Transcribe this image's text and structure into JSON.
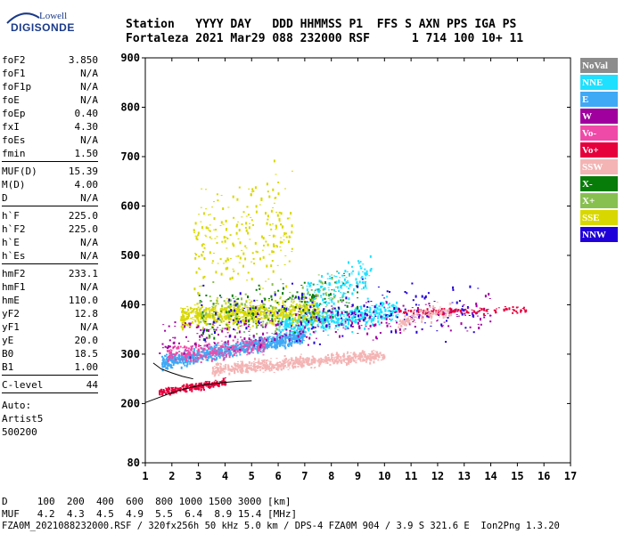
{
  "logo": {
    "line1": "Lowell",
    "line2": "DIGISONDE"
  },
  "header": {
    "line1": "Station   YYYY DAY   DDD HHMMSS P1  FFS S AXN PPS IGA PS",
    "line2": "Fortaleza 2021 Mar29 088 232000 RSF      1 714 100 10+ 11"
  },
  "params": {
    "group1": [
      {
        "name": "foF2",
        "value": "3.850"
      },
      {
        "name": "foF1",
        "value": "N/A"
      },
      {
        "name": "foF1p",
        "value": "N/A"
      },
      {
        "name": "foE",
        "value": "N/A"
      },
      {
        "name": "foEp",
        "value": "0.40"
      },
      {
        "name": "fxI",
        "value": "4.30"
      },
      {
        "name": "foEs",
        "value": "N/A"
      },
      {
        "name": "fmin",
        "value": "1.50"
      }
    ],
    "group2": [
      {
        "name": "MUF(D)",
        "value": "15.39"
      },
      {
        "name": "M(D)",
        "value": "4.00"
      },
      {
        "name": "D",
        "value": "N/A"
      }
    ],
    "group3": [
      {
        "name": "h`F",
        "value": "225.0"
      },
      {
        "name": "h`F2",
        "value": "225.0"
      },
      {
        "name": "h`E",
        "value": "N/A"
      },
      {
        "name": "h`Es",
        "value": "N/A"
      }
    ],
    "group4": [
      {
        "name": "hmF2",
        "value": "233.1"
      },
      {
        "name": "hmF1",
        "value": "N/A"
      },
      {
        "name": "hmE",
        "value": "110.0"
      },
      {
        "name": "yF2",
        "value": "12.8"
      },
      {
        "name": "yF1",
        "value": "N/A"
      },
      {
        "name": "yE",
        "value": "20.0"
      },
      {
        "name": "B0",
        "value": "18.5"
      },
      {
        "name": "B1",
        "value": "1.00"
      }
    ],
    "group5": [
      {
        "name": "C-level",
        "value": "44"
      }
    ],
    "auto": [
      "Auto:",
      "Artist5",
      "500200"
    ]
  },
  "footer": {
    "d_line": "D     100  200  400  600  800 1000 1500 3000 [km]",
    "muf_line": "MUF   4.2  4.3  4.5  4.9  5.5  6.4  8.9 15.4 [MHz]",
    "info_line": "FZA0M_2021088232000.RSF / 320fx256h 50 kHz 5.0 km / DPS-4 FZA0M 904 / 3.9 S 321.6 E  Ion2Png 1.3.20"
  },
  "legend": [
    {
      "label": "NoVal",
      "color": "#8c8c8c"
    },
    {
      "label": "NNE",
      "color": "#1fe0ff"
    },
    {
      "label": "E",
      "color": "#3fa9f5"
    },
    {
      "label": "W",
      "color": "#a0009e"
    },
    {
      "label": "Vo-",
      "color": "#f04aa8"
    },
    {
      "label": "Vo+",
      "color": "#e6003c"
    },
    {
      "label": "SSW",
      "color": "#f4b4b4"
    },
    {
      "label": "X-",
      "color": "#087c08"
    },
    {
      "label": "X+",
      "color": "#88c050"
    },
    {
      "label": "SSE",
      "color": "#d8d800"
    },
    {
      "label": "NNW",
      "color": "#2000d8"
    }
  ],
  "chart_data": {
    "type": "scatter",
    "title": "",
    "xlabel": "",
    "ylabel": "",
    "xlim": [
      1,
      17
    ],
    "ylim": [
      80,
      900
    ],
    "xticks": [
      1,
      2,
      3,
      4,
      5,
      6,
      7,
      8,
      9,
      10,
      11,
      12,
      13,
      14,
      15,
      16,
      17
    ],
    "yticks": [
      80,
      200,
      300,
      400,
      500,
      600,
      700,
      800,
      900
    ],
    "grid": false,
    "legend_position": "right",
    "trace_curve": {
      "x": [
        1.0,
        1.5,
        2.0,
        2.5,
        3.0,
        3.5,
        4.0,
        4.5,
        5.0
      ],
      "y": [
        202,
        212,
        222,
        230,
        236,
        240,
        243,
        245,
        246
      ]
    },
    "ordinary_trace_curve": {
      "x": [
        1.3,
        1.6,
        2.0,
        2.4,
        2.8
      ],
      "y": [
        282,
        270,
        262,
        255,
        250
      ]
    },
    "clusters": [
      {
        "series": "E",
        "x_range": [
          1.6,
          7.0
        ],
        "y_center": [
          285,
          340
        ],
        "spread": 12,
        "density": 900
      },
      {
        "series": "NNE",
        "x_range": [
          6.0,
          10.5
        ],
        "y_center": [
          360,
          390
        ],
        "spread": 18,
        "density": 500
      },
      {
        "series": "SSE",
        "x_range": [
          2.3,
          7.5
        ],
        "y_center": [
          380,
          390
        ],
        "spread": 20,
        "density": 700
      },
      {
        "series": "SSE",
        "x_range": [
          2.8,
          6.5
        ],
        "y_center": [
          520,
          560
        ],
        "spread": 90,
        "density": 250
      },
      {
        "series": "SSW",
        "x_range": [
          3.5,
          10.0
        ],
        "y_center": [
          270,
          300
        ],
        "spread": 10,
        "density": 700
      },
      {
        "series": "Vo+",
        "x_range": [
          1.5,
          4.0
        ],
        "y_center": [
          225,
          245
        ],
        "spread": 6,
        "density": 250
      },
      {
        "series": "Vo-",
        "x_range": [
          1.8,
          5.5
        ],
        "y_center": [
          300,
          320
        ],
        "spread": 15,
        "density": 250
      },
      {
        "series": "W",
        "x_range": [
          1.5,
          14.0
        ],
        "y_center": [
          330,
          390
        ],
        "spread": 30,
        "density": 300
      },
      {
        "series": "X-",
        "x_range": [
          3.0,
          9.0
        ],
        "y_center": [
          380,
          420
        ],
        "spread": 40,
        "density": 150
      },
      {
        "series": "X+",
        "x_range": [
          3.0,
          8.5
        ],
        "y_center": [
          380,
          420
        ],
        "spread": 40,
        "density": 150
      },
      {
        "series": "NNW",
        "x_range": [
          3.0,
          13.5
        ],
        "y_center": [
          380,
          400
        ],
        "spread": 50,
        "density": 180
      },
      {
        "series": "Vo+",
        "x_range": [
          10.5,
          15.3
        ],
        "y_center": [
          388,
          392
        ],
        "spread": 6,
        "density": 120
      },
      {
        "series": "SSW",
        "x_range": [
          10.5,
          12.5
        ],
        "y_center": [
          365,
          395
        ],
        "spread": 12,
        "density": 100
      },
      {
        "series": "NNE",
        "x_range": [
          7.0,
          9.5
        ],
        "y_center": [
          420,
          470
        ],
        "spread": 30,
        "density": 150
      }
    ]
  }
}
